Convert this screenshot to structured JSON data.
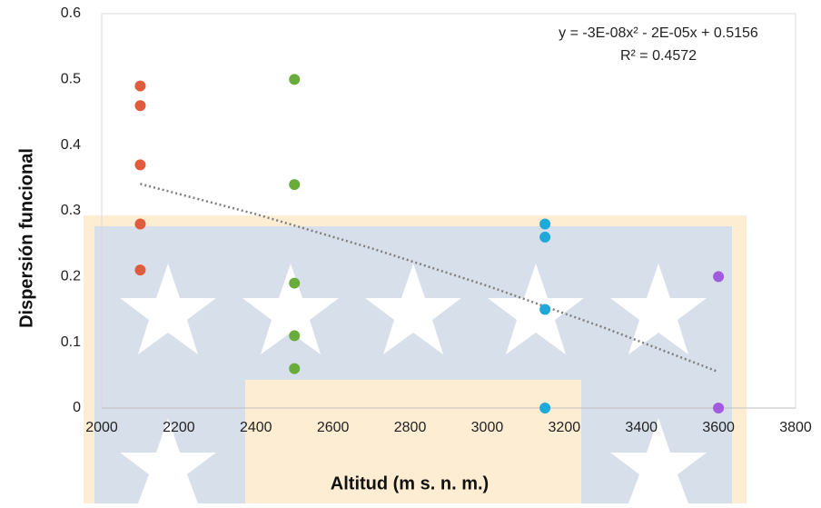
{
  "chart_data": {
    "type": "scatter",
    "x_label": "Altitud (m s. n. m.)",
    "y_label": "Dispersión funcional",
    "xlim": [
      2000,
      3800
    ],
    "xticks": [
      2000,
      2200,
      2400,
      2600,
      2800,
      3000,
      3200,
      3400,
      3600,
      3800
    ],
    "ylim": [
      0,
      0.6
    ],
    "yticks": [
      0,
      0.1,
      0.2,
      0.3,
      0.4,
      0.5,
      0.6
    ],
    "series": [
      {
        "color": "#e15c3c",
        "x": [
          2100,
          2100,
          2100,
          2100,
          2100
        ],
        "values": [
          0.49,
          0.46,
          0.37,
          0.28,
          0.21
        ]
      },
      {
        "color": "#6aac3c",
        "x": [
          2500,
          2500,
          2500,
          2500,
          2500
        ],
        "values": [
          0.5,
          0.34,
          0.19,
          0.11,
          0.06
        ]
      },
      {
        "color": "#1ea9d8",
        "x": [
          3150,
          3150,
          3150,
          3150
        ],
        "values": [
          0.28,
          0.26,
          0.15,
          0
        ]
      },
      {
        "color": "#a25ae0",
        "x": [
          3600,
          3600
        ],
        "values": [
          0.2,
          0
        ]
      }
    ],
    "trendline": {
      "equation": "y = -3E-08x² - 2E-05x + 0.5156",
      "r_squared": "R² = 0.4572",
      "color": "#7f7f7f",
      "x": [
        2100,
        2400,
        2700,
        3000,
        3300,
        3600
      ],
      "values": [
        0.341,
        0.295,
        0.243,
        0.186,
        0.123,
        0.055
      ]
    }
  }
}
